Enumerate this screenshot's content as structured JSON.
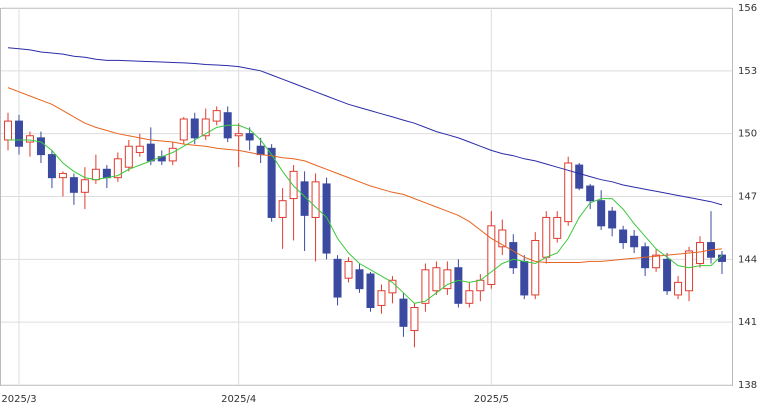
{
  "chart_data": {
    "type": "candlestick",
    "categories": [
      null,
      "2025/3",
      null,
      null,
      null,
      null,
      null,
      null,
      null,
      null,
      null,
      null,
      null,
      null,
      null,
      null,
      null,
      null,
      null,
      null,
      null,
      "2025/4",
      null,
      null,
      null,
      null,
      null,
      null,
      null,
      null,
      null,
      null,
      null,
      null,
      null,
      null,
      null,
      null,
      null,
      null,
      null,
      null,
      null,
      null,
      "2025/5",
      null,
      null,
      null,
      null,
      null,
      null,
      null,
      null,
      null,
      null,
      null,
      null,
      null,
      null,
      null,
      null,
      null,
      null,
      null,
      null,
      null
    ],
    "open": [
      149.7,
      150.6,
      149.6,
      149.8,
      149.0,
      147.9,
      147.9,
      147.2,
      147.8,
      148.3,
      147.9,
      148.4,
      149.1,
      149.5,
      148.9,
      148.7,
      149.7,
      150.7,
      149.9,
      150.6,
      151.0,
      149.9,
      150.0,
      149.4,
      149.3,
      146.0,
      146.9,
      147.7,
      146.0,
      147.6,
      144.0,
      143.1,
      143.5,
      143.3,
      141.8,
      142.4,
      142.1,
      140.6,
      141.9,
      142.5,
      142.6,
      143.6,
      141.9,
      142.5,
      142.8,
      144.6,
      144.8,
      143.9,
      142.3,
      144.1,
      145.0,
      145.8,
      148.5,
      147.5,
      146.8,
      146.3,
      145.4,
      145.1,
      144.6,
      143.6,
      144.0,
      142.3,
      142.5,
      143.8,
      144.8,
      144.2
    ],
    "high": [
      151.0,
      150.9,
      150.1,
      150.1,
      149.2,
      148.2,
      148.1,
      148.4,
      149.0,
      148.5,
      149.1,
      149.7,
      150.0,
      150.3,
      149.2,
      149.6,
      150.8,
      151.0,
      151.2,
      151.3,
      151.3,
      150.5,
      150.3,
      149.8,
      149.5,
      147.4,
      148.5,
      148.2,
      148.1,
      147.9,
      144.2,
      144.1,
      143.8,
      143.4,
      142.8,
      143.2,
      142.4,
      141.9,
      143.8,
      143.9,
      143.9,
      144.0,
      142.9,
      143.3,
      146.3,
      145.9,
      145.2,
      144.2,
      145.3,
      146.3,
      146.3,
      148.9,
      148.6,
      147.6,
      147.3,
      146.5,
      145.6,
      145.4,
      144.8,
      144.5,
      144.3,
      143.2,
      144.6,
      145.1,
      146.3,
      144.4
    ],
    "low": [
      149.2,
      149.0,
      148.9,
      148.6,
      147.4,
      147.0,
      146.6,
      146.4,
      147.6,
      147.4,
      147.7,
      148.2,
      148.9,
      148.5,
      148.5,
      148.5,
      149.5,
      149.5,
      149.7,
      150.4,
      149.6,
      148.4,
      149.2,
      148.6,
      145.8,
      144.5,
      144.9,
      144.4,
      143.9,
      144.0,
      141.8,
      142.9,
      142.4,
      141.5,
      141.4,
      141.9,
      140.3,
      139.8,
      141.5,
      142.3,
      142.3,
      141.7,
      141.7,
      142.0,
      142.6,
      144.2,
      143.3,
      142.1,
      142.1,
      143.8,
      144.8,
      145.6,
      147.3,
      146.4,
      145.4,
      145.1,
      144.5,
      144.3,
      143.2,
      143.4,
      142.3,
      142.1,
      142.0,
      143.6,
      143.8,
      143.3
    ],
    "close": [
      150.6,
      149.4,
      149.9,
      149.0,
      147.9,
      148.1,
      147.2,
      147.8,
      148.3,
      147.9,
      148.8,
      149.4,
      149.4,
      148.7,
      148.7,
      149.3,
      150.7,
      149.8,
      150.7,
      151.1,
      149.8,
      150.0,
      149.7,
      149.0,
      146.0,
      146.8,
      148.2,
      146.1,
      147.7,
      144.3,
      142.2,
      143.9,
      142.6,
      141.7,
      142.5,
      143.0,
      140.8,
      141.7,
      143.5,
      143.6,
      143.5,
      141.9,
      142.5,
      143.0,
      145.6,
      145.4,
      143.6,
      142.3,
      144.9,
      146.0,
      146.0,
      148.6,
      147.4,
      146.8,
      145.6,
      145.5,
      144.8,
      144.6,
      143.6,
      144.2,
      142.5,
      142.9,
      144.4,
      144.8,
      144.1,
      143.9
    ],
    "up_color": "#e03c31",
    "down_color": "#3b4aa0",
    "lines": [
      {
        "color": "#2b2ba8",
        "values": [
          154.1,
          154.05,
          154.0,
          153.9,
          153.85,
          153.8,
          153.7,
          153.65,
          153.55,
          153.5,
          153.5,
          153.48,
          153.46,
          153.44,
          153.42,
          153.4,
          153.38,
          153.35,
          153.3,
          153.28,
          153.25,
          153.2,
          153.1,
          153.0,
          152.8,
          152.6,
          152.4,
          152.2,
          152.0,
          151.8,
          151.6,
          151.4,
          151.25,
          151.1,
          150.95,
          150.8,
          150.65,
          150.5,
          150.3,
          150.1,
          149.95,
          149.8,
          149.6,
          149.4,
          149.2,
          149.05,
          148.95,
          148.8,
          148.7,
          148.55,
          148.4,
          148.25,
          148.1,
          147.95,
          147.8,
          147.7,
          147.55,
          147.45,
          147.35,
          147.25,
          147.15,
          147.05,
          146.95,
          146.85,
          146.75,
          146.6
        ]
      },
      {
        "color": "#e8641e",
        "values": [
          152.2,
          152.0,
          151.8,
          151.6,
          151.4,
          151.1,
          150.8,
          150.5,
          150.3,
          150.15,
          150.0,
          149.9,
          149.8,
          149.7,
          149.65,
          149.6,
          149.5,
          149.45,
          149.4,
          149.3,
          149.25,
          149.2,
          149.1,
          149.0,
          148.95,
          148.85,
          148.8,
          148.7,
          148.5,
          148.3,
          148.1,
          147.9,
          147.7,
          147.5,
          147.35,
          147.2,
          147.1,
          146.9,
          146.7,
          146.5,
          146.3,
          146.1,
          145.8,
          145.4,
          145.0,
          144.7,
          144.4,
          144.1,
          143.9,
          143.85,
          143.85,
          143.85,
          143.85,
          143.9,
          143.9,
          143.95,
          144.0,
          144.05,
          144.1,
          144.15,
          144.2,
          144.25,
          144.3,
          144.35,
          144.45,
          144.5
        ]
      },
      {
        "color": "#3cc83c",
        "values": [
          149.7,
          149.7,
          149.7,
          149.6,
          149.2,
          148.6,
          148.2,
          147.9,
          147.8,
          147.9,
          148.0,
          148.3,
          148.5,
          148.7,
          148.9,
          149.1,
          149.4,
          149.7,
          150.0,
          150.3,
          150.4,
          150.4,
          150.2,
          149.7,
          149.0,
          148.2,
          147.5,
          147.0,
          146.5,
          146.0,
          145.0,
          144.3,
          143.8,
          143.5,
          143.2,
          142.9,
          142.4,
          141.9,
          142.0,
          142.4,
          142.8,
          143.0,
          142.9,
          143.0,
          143.4,
          143.8,
          144.0,
          143.9,
          143.8,
          144.1,
          144.3,
          145.0,
          146.0,
          146.7,
          146.9,
          146.9,
          146.4,
          145.7,
          145.1,
          144.5,
          144.1,
          143.7,
          143.6,
          143.7,
          143.7,
          144.2
        ]
      }
    ],
    "ylim": [
      138,
      156
    ],
    "yticks": [
      138,
      141,
      144,
      147,
      150,
      153,
      156
    ],
    "grid": true
  }
}
